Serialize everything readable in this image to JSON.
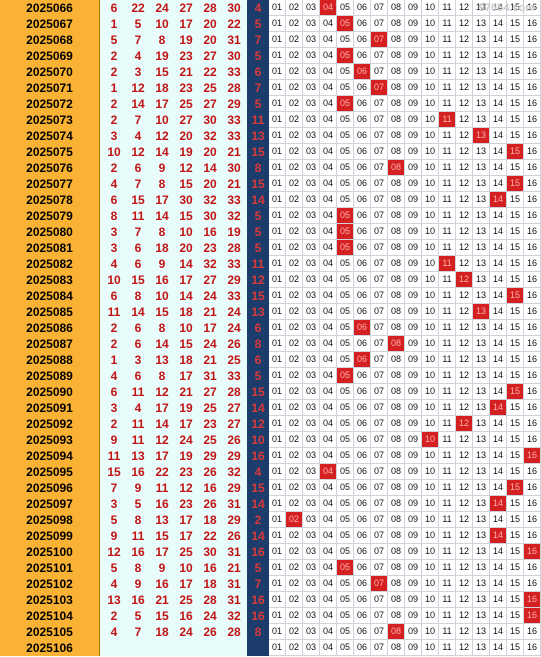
{
  "watermark": "97654.com",
  "issues": [
    {
      "issue": "2025066",
      "reds": [
        6,
        22,
        24,
        27,
        28,
        30
      ],
      "blue": 4
    },
    {
      "issue": "2025067",
      "reds": [
        1,
        5,
        10,
        17,
        20,
        22
      ],
      "blue": 5
    },
    {
      "issue": "2025068",
      "reds": [
        5,
        7,
        8,
        19,
        20,
        31
      ],
      "blue": 7
    },
    {
      "issue": "2025069",
      "reds": [
        2,
        4,
        19,
        23,
        27,
        30
      ],
      "blue": 5
    },
    {
      "issue": "2025070",
      "reds": [
        2,
        3,
        15,
        21,
        22,
        33
      ],
      "blue": 6
    },
    {
      "issue": "2025071",
      "reds": [
        1,
        12,
        18,
        23,
        25,
        28
      ],
      "blue": 7
    },
    {
      "issue": "2025072",
      "reds": [
        2,
        14,
        17,
        25,
        27,
        29
      ],
      "blue": 5
    },
    {
      "issue": "2025073",
      "reds": [
        2,
        7,
        10,
        27,
        30,
        33
      ],
      "blue": 11
    },
    {
      "issue": "2025074",
      "reds": [
        3,
        4,
        12,
        20,
        32,
        33
      ],
      "blue": 13
    },
    {
      "issue": "2025075",
      "reds": [
        10,
        12,
        14,
        19,
        20,
        21
      ],
      "blue": 15
    },
    {
      "issue": "2025076",
      "reds": [
        2,
        6,
        9,
        12,
        14,
        30
      ],
      "blue": 8
    },
    {
      "issue": "2025077",
      "reds": [
        4,
        7,
        8,
        15,
        20,
        21
      ],
      "blue": 15
    },
    {
      "issue": "2025078",
      "reds": [
        6,
        15,
        17,
        30,
        32,
        33
      ],
      "blue": 14
    },
    {
      "issue": "2025079",
      "reds": [
        8,
        11,
        14,
        15,
        30,
        32
      ],
      "blue": 5
    },
    {
      "issue": "2025080",
      "reds": [
        3,
        7,
        8,
        10,
        16,
        19
      ],
      "blue": 5
    },
    {
      "issue": "2025081",
      "reds": [
        3,
        6,
        18,
        20,
        23,
        28
      ],
      "blue": 5
    },
    {
      "issue": "2025082",
      "reds": [
        4,
        6,
        9,
        14,
        32,
        33
      ],
      "blue": 11
    },
    {
      "issue": "2025083",
      "reds": [
        10,
        15,
        16,
        17,
        27,
        29
      ],
      "blue": 12
    },
    {
      "issue": "2025084",
      "reds": [
        6,
        8,
        10,
        14,
        24,
        33
      ],
      "blue": 15
    },
    {
      "issue": "2025085",
      "reds": [
        11,
        14,
        15,
        18,
        21,
        24
      ],
      "blue": 13
    },
    {
      "issue": "2025086",
      "reds": [
        2,
        6,
        8,
        10,
        17,
        24
      ],
      "blue": 6
    },
    {
      "issue": "2025087",
      "reds": [
        2,
        6,
        14,
        15,
        24,
        26
      ],
      "blue": 8
    },
    {
      "issue": "2025088",
      "reds": [
        1,
        3,
        13,
        18,
        21,
        25
      ],
      "blue": 6
    },
    {
      "issue": "2025089",
      "reds": [
        4,
        6,
        8,
        17,
        31,
        33
      ],
      "blue": 5
    },
    {
      "issue": "2025090",
      "reds": [
        6,
        11,
        12,
        21,
        27,
        28
      ],
      "blue": 15
    },
    {
      "issue": "2025091",
      "reds": [
        3,
        4,
        17,
        19,
        25,
        27
      ],
      "blue": 14
    },
    {
      "issue": "2025092",
      "reds": [
        2,
        11,
        14,
        17,
        23,
        27
      ],
      "blue": 12
    },
    {
      "issue": "2025093",
      "reds": [
        9,
        11,
        12,
        24,
        25,
        26
      ],
      "blue": 10
    },
    {
      "issue": "2025094",
      "reds": [
        11,
        13,
        17,
        19,
        29,
        29
      ],
      "blue": 16
    },
    {
      "issue": "2025095",
      "reds": [
        15,
        16,
        22,
        23,
        26,
        32
      ],
      "blue": 4
    },
    {
      "issue": "2025096",
      "reds": [
        7,
        9,
        11,
        12,
        16,
        29
      ],
      "blue": 15
    },
    {
      "issue": "2025097",
      "reds": [
        3,
        5,
        16,
        23,
        26,
        31
      ],
      "blue": 14
    },
    {
      "issue": "2025098",
      "reds": [
        5,
        8,
        13,
        17,
        18,
        29
      ],
      "blue": 2
    },
    {
      "issue": "2025099",
      "reds": [
        9,
        11,
        15,
        17,
        22,
        26
      ],
      "blue": 14
    },
    {
      "issue": "2025100",
      "reds": [
        12,
        16,
        17,
        25,
        30,
        31
      ],
      "blue": 16
    },
    {
      "issue": "2025101",
      "reds": [
        5,
        8,
        9,
        10,
        16,
        21
      ],
      "blue": 5
    },
    {
      "issue": "2025102",
      "reds": [
        4,
        9,
        16,
        17,
        18,
        31
      ],
      "blue": 7
    },
    {
      "issue": "2025103",
      "reds": [
        13,
        16,
        21,
        25,
        28,
        31
      ],
      "blue": 16
    },
    {
      "issue": "2025104",
      "reds": [
        2,
        5,
        15,
        16,
        24,
        32
      ],
      "blue": 16
    },
    {
      "issue": "2025105",
      "reds": [
        4,
        7,
        18,
        24,
        26,
        28
      ],
      "blue": 8
    },
    {
      "issue": "2025106",
      "reds": [],
      "blue": null
    }
  ],
  "grid_numbers": [
    "01",
    "02",
    "03",
    "04",
    "05",
    "06",
    "07",
    "08",
    "09",
    "10",
    "11",
    "12",
    "13",
    "14",
    "15",
    "16"
  ]
}
